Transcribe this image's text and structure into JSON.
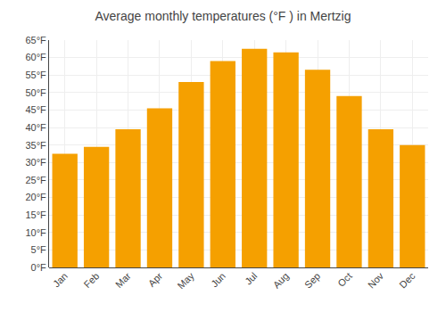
{
  "chart_data": {
    "type": "bar",
    "title": "Average monthly temperatures (°F ) in Mertzig",
    "categories": [
      "Jan",
      "Feb",
      "Mar",
      "Apr",
      "May",
      "Jun",
      "Jul",
      "Aug",
      "Sep",
      "Oct",
      "Nov",
      "Dec"
    ],
    "values": [
      32.5,
      34.5,
      39.5,
      45.5,
      53.0,
      59.0,
      62.5,
      61.5,
      56.5,
      49.0,
      39.5,
      35.0
    ],
    "color": "#F5A000",
    "ylim": [
      0,
      65
    ],
    "yticks": [
      {
        "value": 0,
        "label": "0°F"
      },
      {
        "value": 5,
        "label": "5°F"
      },
      {
        "value": 10,
        "label": "10°F"
      },
      {
        "value": 15,
        "label": "15°F"
      },
      {
        "value": 20,
        "label": "20°F"
      },
      {
        "value": 25,
        "label": "25°F"
      },
      {
        "value": 30,
        "label": "30°F"
      },
      {
        "value": 35,
        "label": "35°F"
      },
      {
        "value": 40,
        "label": "40°F"
      },
      {
        "value": 45,
        "label": "45°F"
      },
      {
        "value": 50,
        "label": "50°F"
      },
      {
        "value": 55,
        "label": "55°F"
      },
      {
        "value": 60,
        "label": "60°F"
      },
      {
        "value": 65,
        "label": "65°F"
      }
    ],
    "grid": true
  }
}
